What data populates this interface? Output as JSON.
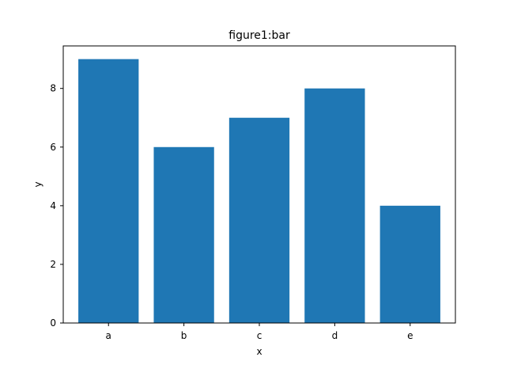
{
  "chart_data": {
    "type": "bar",
    "title": "figure1:bar",
    "xlabel": "x",
    "ylabel": "y",
    "categories": [
      "a",
      "b",
      "c",
      "d",
      "e"
    ],
    "values": [
      9,
      6,
      7,
      8,
      4
    ],
    "ylim": [
      0,
      9.45
    ],
    "yticks": [
      0,
      2,
      4,
      6,
      8
    ],
    "bar_color": "#1f77b4",
    "grid": false,
    "legend": "none"
  }
}
